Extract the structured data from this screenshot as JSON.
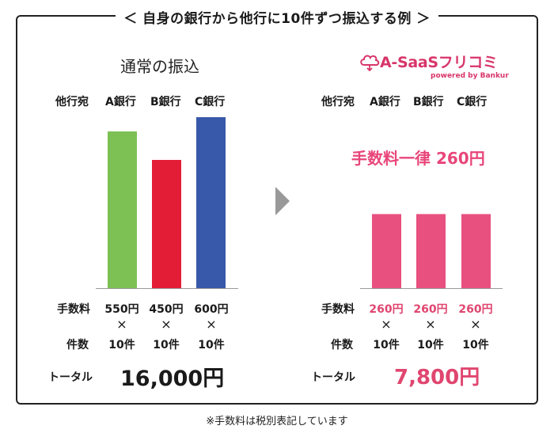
{
  "title": "＜ 自身の銀行から他行に10件ずつ振込する例 ＞",
  "footnote": "※手数料は税別表記しています",
  "left": {
    "heading": "通常の振込",
    "dest_label": "他行宛",
    "banks": [
      "A銀行",
      "B銀行",
      "C銀行"
    ],
    "fee_label": "手数料",
    "fees": [
      "550円",
      "450円",
      "600円"
    ],
    "times": "×",
    "count_label": "件数",
    "counts": [
      "10件",
      "10件",
      "10件"
    ],
    "total_label": "トータル",
    "total": "16,000円"
  },
  "right": {
    "logo": {
      "name": "A-SaaSフリコミ",
      "sub": "powered by Bankur"
    },
    "dest_label": "他行宛",
    "banks": [
      "A銀行",
      "B銀行",
      "C銀行"
    ],
    "flat_rate": "手数料一律 260円",
    "fee_label": "手数料",
    "fees": [
      "260円",
      "260円",
      "260円"
    ],
    "times": "×",
    "count_label": "件数",
    "counts": [
      "10件",
      "10件",
      "10件"
    ],
    "total_label": "トータル",
    "total": "7,800円"
  },
  "colors": {
    "bar_a": "#7dc155",
    "bar_b": "#e41d37",
    "bar_c": "#3858a9",
    "bar_pink": "#e8507f",
    "arrow": "#999999",
    "accent": "#e0466f"
  },
  "chart_data": [
    {
      "type": "bar",
      "title": "通常の振込",
      "categories": [
        "A銀行",
        "B銀行",
        "C銀行"
      ],
      "values": [
        550,
        450,
        600
      ],
      "unit": "円",
      "ylim": [
        0,
        650
      ]
    },
    {
      "type": "bar",
      "title": "A-SaaSフリコミ",
      "categories": [
        "A銀行",
        "B銀行",
        "C銀行"
      ],
      "values": [
        260,
        260,
        260
      ],
      "unit": "円",
      "ylim": [
        0,
        650
      ]
    }
  ]
}
